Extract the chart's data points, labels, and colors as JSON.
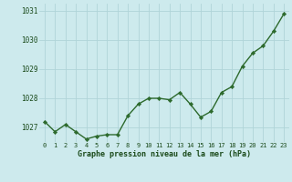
{
  "x": [
    0,
    1,
    2,
    3,
    4,
    5,
    6,
    7,
    8,
    9,
    10,
    11,
    12,
    13,
    14,
    15,
    16,
    17,
    18,
    19,
    20,
    21,
    22,
    23
  ],
  "y": [
    1027.2,
    1026.85,
    1027.1,
    1026.85,
    1026.6,
    1026.7,
    1026.75,
    1026.75,
    1027.4,
    1027.8,
    1028.0,
    1028.0,
    1027.95,
    1028.2,
    1027.8,
    1027.35,
    1027.55,
    1028.2,
    1028.4,
    1029.1,
    1029.55,
    1029.8,
    1030.3,
    1030.9
  ],
  "ylim": [
    1026.5,
    1031.25
  ],
  "yticks": [
    1027,
    1028,
    1029,
    1030,
    1031
  ],
  "xticks": [
    0,
    1,
    2,
    3,
    4,
    5,
    6,
    7,
    8,
    9,
    10,
    11,
    12,
    13,
    14,
    15,
    16,
    17,
    18,
    19,
    20,
    21,
    22,
    23
  ],
  "line_color": "#2d6a2d",
  "marker_color": "#2d6a2d",
  "bg_color": "#cdeaed",
  "grid_color": "#b0d4d8",
  "xlabel": "Graphe pression niveau de la mer (hPa)",
  "xlabel_color": "#1a4a1a",
  "tick_color": "#1a4a1a"
}
